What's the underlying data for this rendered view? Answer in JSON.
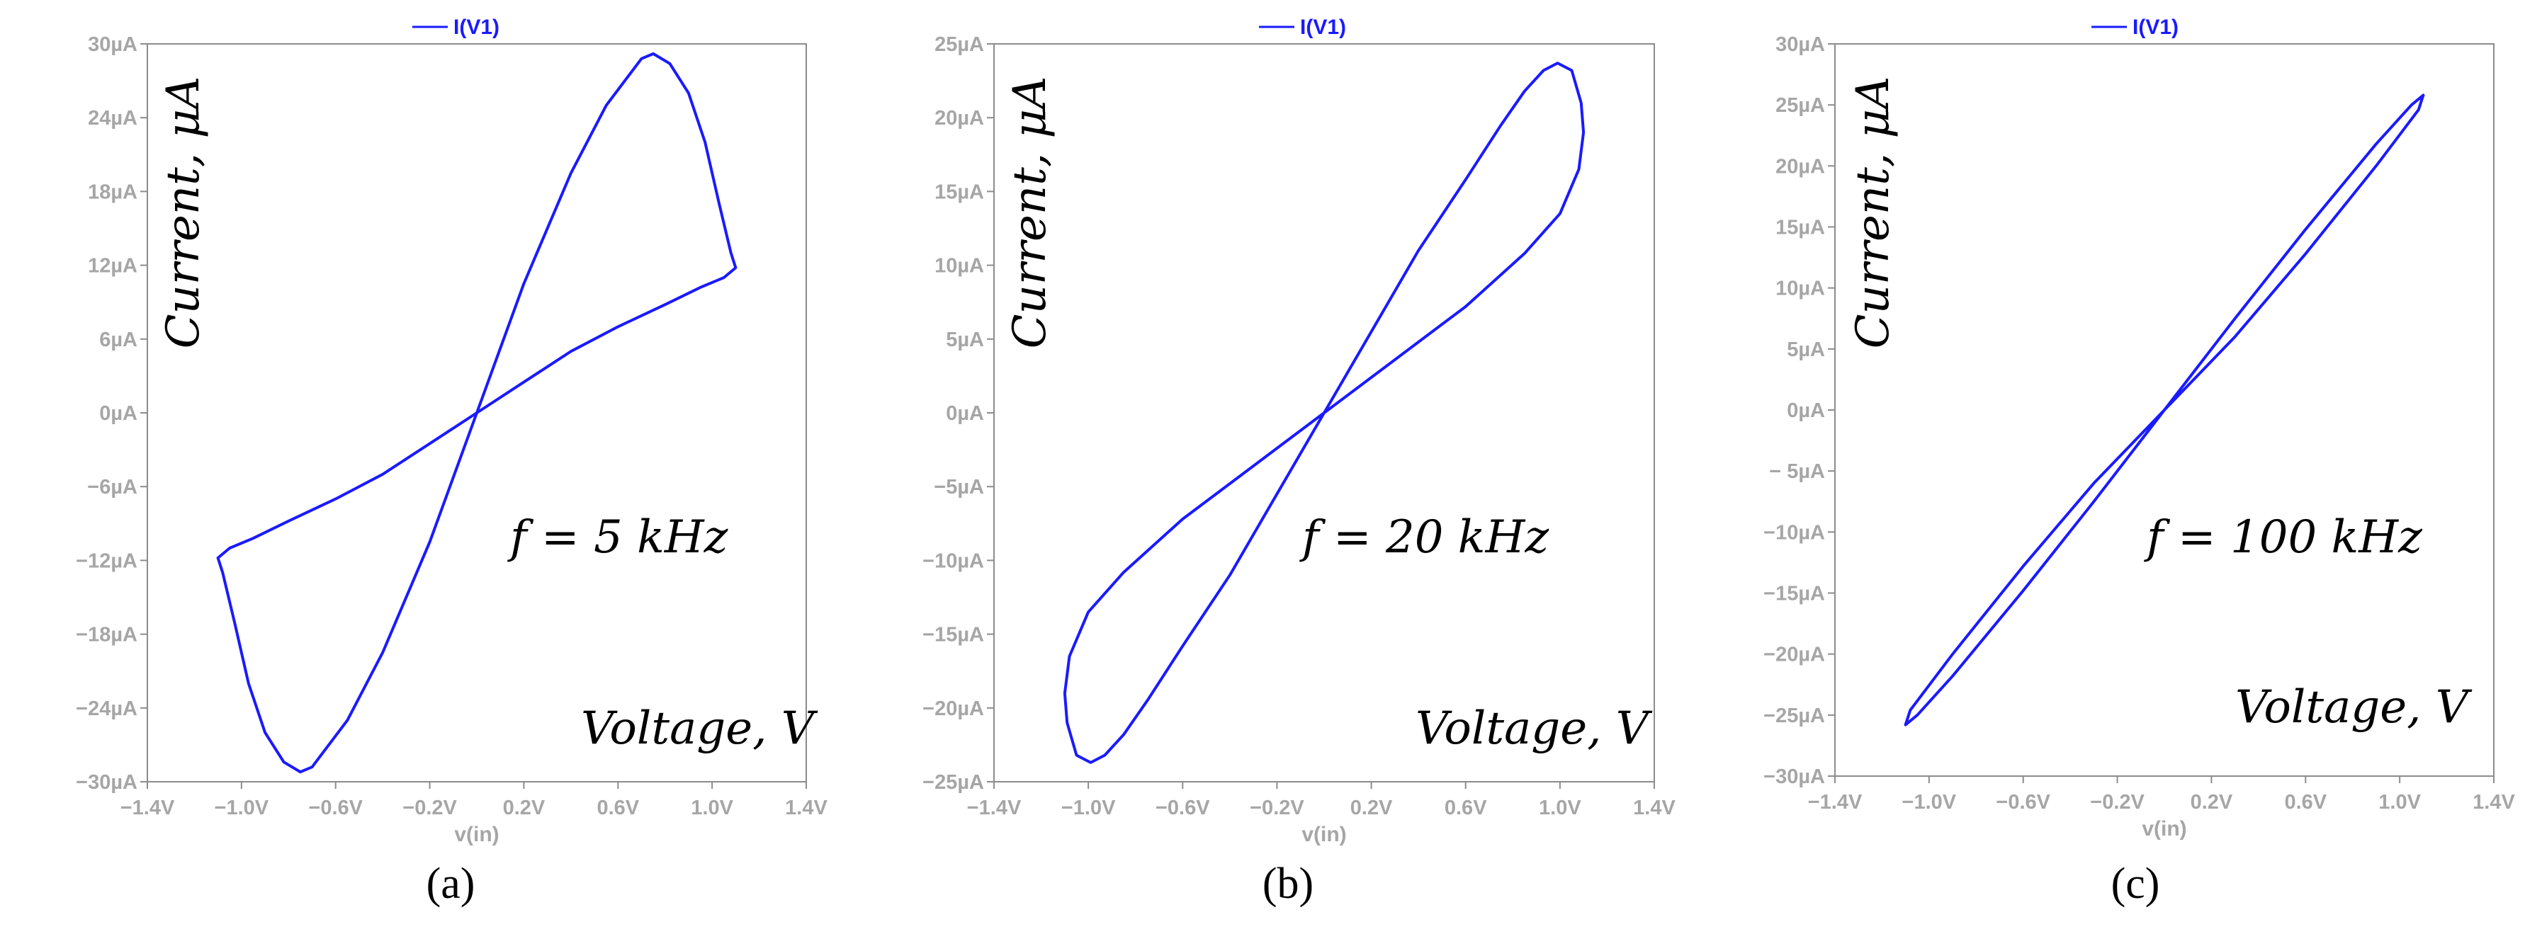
{
  "colors": {
    "trace": "#1a1aff",
    "axis": "#a6a6a6",
    "frame": "#8c8c8c"
  },
  "chart_data": [
    {
      "type": "line",
      "legend": "I(V1)",
      "xlabel": "v(in)",
      "ylabel_annotation": "Current, μA",
      "x_annotation": "Voltage, V",
      "freq_annotation": "f = 5 kHz",
      "caption": "(a)",
      "xlim": [
        -1.4,
        1.4
      ],
      "ylim": [
        -30,
        30
      ],
      "x_ticks": [
        "−1.4V",
        "−1.0V",
        "−0.6V",
        "−0.2V",
        "0.2V",
        "0.6V",
        "1.0V",
        "1.4V"
      ],
      "y_ticks": [
        "30µA",
        "24µA",
        "18µA",
        "12µA",
        "6µA",
        "0µA",
        "−6µA",
        "−12µA",
        "−18µA",
        "−24µA",
        "−30µA"
      ],
      "series": [
        {
          "name": "I(V1)",
          "x": [
            0.0,
            0.2,
            0.4,
            0.55,
            0.7,
            0.75,
            0.82,
            0.9,
            0.97,
            1.03,
            1.08,
            1.1,
            1.05,
            0.95,
            0.8,
            0.6,
            0.4,
            0.2,
            0.0,
            -0.2,
            -0.4,
            -0.6,
            -0.8,
            -0.95,
            -1.05,
            -1.1,
            -1.08,
            -1.03,
            -0.97,
            -0.9,
            -0.82,
            -0.75,
            -0.7,
            -0.55,
            -0.4,
            -0.2,
            0.0
          ],
          "y": [
            0.0,
            10.5,
            19.5,
            25.0,
            28.8,
            29.2,
            28.4,
            26.0,
            22.0,
            17.0,
            13.0,
            11.8,
            11.0,
            10.2,
            8.8,
            7.0,
            5.0,
            2.5,
            0.0,
            -2.5,
            -5.0,
            -7.0,
            -8.8,
            -10.2,
            -11.0,
            -11.8,
            -13.0,
            -17.0,
            -22.0,
            -26.0,
            -28.4,
            -29.2,
            -28.8,
            -25.0,
            -19.5,
            -10.5,
            0.0
          ]
        }
      ]
    },
    {
      "type": "line",
      "legend": "I(V1)",
      "xlabel": "v(in)",
      "ylabel_annotation": "Current, μA",
      "x_annotation": "Voltage, V",
      "freq_annotation": "f = 20 kHz",
      "caption": "(b)",
      "xlim": [
        -1.4,
        1.4
      ],
      "ylim": [
        -25,
        25
      ],
      "x_ticks": [
        "−1.4V",
        "−1.0V",
        "−0.6V",
        "−0.2V",
        "0.2V",
        "0.6V",
        "1.0V",
        "1.4V"
      ],
      "y_ticks": [
        "25µA",
        "20µA",
        "15µA",
        "10µA",
        "5µA",
        "0µA",
        "−5µA",
        "−10µA",
        "−15µA",
        "−20µA",
        "−25µA"
      ],
      "series": [
        {
          "name": "I(V1)",
          "x": [
            0.0,
            0.2,
            0.4,
            0.6,
            0.75,
            0.85,
            0.93,
            0.99,
            1.05,
            1.09,
            1.1,
            1.08,
            1.0,
            0.85,
            0.6,
            0.4,
            0.2,
            0.0,
            -0.2,
            -0.4,
            -0.6,
            -0.85,
            -1.0,
            -1.08,
            -1.1,
            -1.09,
            -1.05,
            -0.99,
            -0.93,
            -0.85,
            -0.75,
            -0.6,
            -0.4,
            -0.2,
            0.0
          ],
          "y": [
            0.0,
            5.5,
            11.0,
            15.8,
            19.5,
            21.8,
            23.2,
            23.7,
            23.2,
            21.0,
            19.0,
            16.5,
            13.5,
            10.8,
            7.2,
            4.8,
            2.4,
            0.0,
            -2.4,
            -4.8,
            -7.2,
            -10.8,
            -13.5,
            -16.5,
            -19.0,
            -21.0,
            -23.2,
            -23.7,
            -23.2,
            -21.8,
            -19.5,
            -15.8,
            -11.0,
            -5.5,
            0.0
          ]
        }
      ]
    },
    {
      "type": "line",
      "legend": "I(V1)",
      "xlabel": "v(in)",
      "ylabel_annotation": "Current, μA",
      "x_annotation": "Voltage, V",
      "freq_annotation": "f = 100 kHz",
      "caption": "(c)",
      "xlim": [
        -1.4,
        1.4
      ],
      "ylim": [
        -30,
        30
      ],
      "x_ticks": [
        "−1.4V",
        "−1.0V",
        "−0.6V",
        "−0.2V",
        "0.2V",
        "0.6V",
        "1.0V",
        "1.4V"
      ],
      "y_ticks": [
        "30µA",
        "25µA",
        "20µA",
        "15µA",
        "10µA",
        "5µA",
        "0µA",
        "− 5µA",
        "−10µA",
        "−15µA",
        "−20µA",
        "−25µA",
        "−30µA"
      ],
      "series": [
        {
          "name": "I(V1)",
          "x": [
            0.0,
            0.3,
            0.6,
            0.9,
            1.05,
            1.1,
            1.08,
            0.9,
            0.6,
            0.3,
            0.0,
            -0.3,
            -0.6,
            -0.9,
            -1.05,
            -1.1,
            -1.08,
            -0.9,
            -0.6,
            -0.3,
            0.0
          ],
          "y": [
            0.0,
            7.5,
            14.8,
            21.8,
            25.0,
            25.8,
            24.6,
            20.0,
            12.8,
            6.0,
            0.0,
            -7.5,
            -14.8,
            -21.8,
            -25.0,
            -25.8,
            -24.6,
            -20.0,
            -12.8,
            -6.0,
            0.0
          ]
        }
      ]
    }
  ]
}
